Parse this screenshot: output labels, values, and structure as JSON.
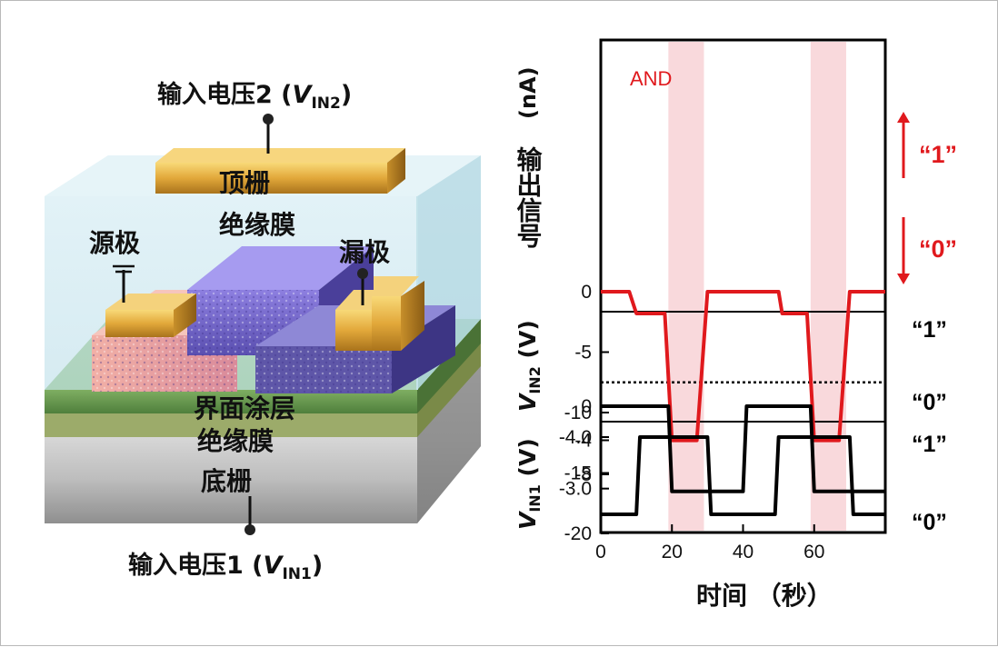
{
  "device": {
    "input2_label": "输入电压2 (",
    "input2_var": "V",
    "input2_sub": "IN2",
    "input2_close": ")",
    "input1_label": "输入电压1 (",
    "input1_var": "V",
    "input1_sub": "IN1",
    "input1_close": ")",
    "top_gate": "顶栅",
    "top_insulator": "绝缘膜",
    "source": "源极",
    "drain": "漏极",
    "interface_coating": "界面涂层",
    "bottom_insulator": "绝缘膜",
    "bottom_gate": "底栅"
  },
  "chart_data": [
    {
      "type": "line",
      "panel": "top",
      "ylabel": "输出信号 (nA)",
      "ylabel_cn": "输出信号",
      "ylabel_unit": "(nA)",
      "annotation": "AND",
      "ylim": [
        0,
        -20
      ],
      "yticks": [
        "-20",
        "-15",
        "-10",
        "-5",
        "0"
      ],
      "threshold": -7.5,
      "state_high": "“1”",
      "state_low": "“0”",
      "x": [
        0,
        8,
        10,
        18,
        20,
        21,
        27,
        30,
        40,
        50,
        51,
        58,
        60,
        61,
        67,
        70,
        80
      ],
      "y": [
        0,
        0,
        -1.8,
        -1.8,
        -12.3,
        -12.3,
        -12.3,
        0,
        0,
        0,
        -1.8,
        -1.8,
        -12.3,
        -12.3,
        -12.3,
        0,
        0
      ]
    },
    {
      "type": "line",
      "panel": "middle",
      "ylabel": "VIN2 (V)",
      "ylabel_var": "V",
      "ylabel_sub": "IN2",
      "ylabel_unit": "(V)",
      "yticks": [
        "-8",
        "-4",
        "0"
      ],
      "state_high": "“1”",
      "state_low": "“0”",
      "x": [
        0,
        19,
        20,
        40,
        41,
        59,
        60,
        80
      ],
      "y": [
        0,
        0,
        -10,
        -10,
        0,
        0,
        -10,
        -10
      ]
    },
    {
      "type": "line",
      "panel": "bottom",
      "ylabel": "VIN1 (V)",
      "ylabel_var": "V",
      "ylabel_sub": "IN1",
      "ylabel_unit": "(V)",
      "yticks": [
        "-4.0",
        "-3.0"
      ],
      "state_high": "“1”",
      "state_low": "“0”",
      "x": [
        0,
        10,
        11,
        30,
        31,
        49,
        50,
        70,
        71,
        80
      ],
      "y": [
        -2.5,
        -2.5,
        -4.0,
        -4.0,
        -2.5,
        -2.5,
        -4.0,
        -4.0,
        -2.5,
        -2.5
      ]
    },
    {
      "type": "axis",
      "xlabel": "时间 （秒）",
      "xticks": [
        "0",
        "20",
        "40",
        "60"
      ],
      "xlim": [
        0,
        80
      ],
      "highlight_bands": [
        [
          19,
          29
        ],
        [
          59,
          69
        ]
      ]
    }
  ]
}
